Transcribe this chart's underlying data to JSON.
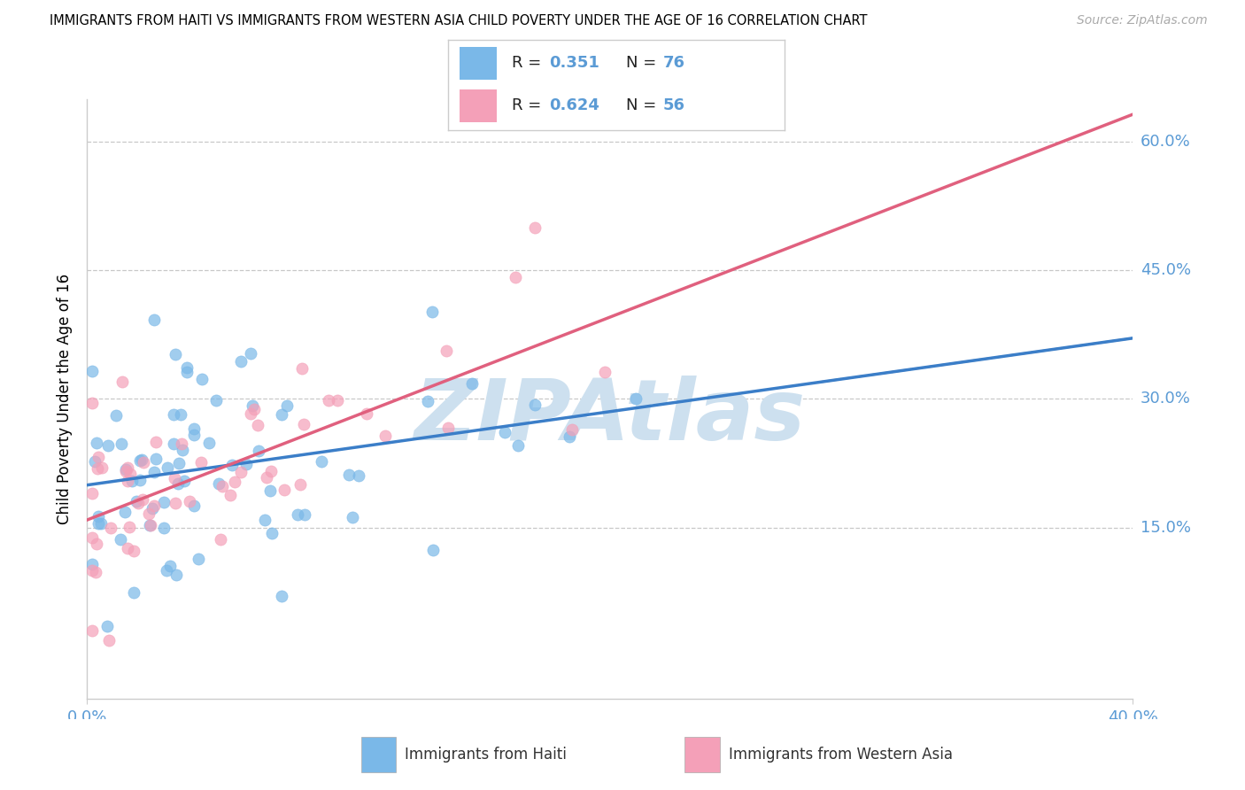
{
  "title": "IMMIGRANTS FROM HAITI VS IMMIGRANTS FROM WESTERN ASIA CHILD POVERTY UNDER THE AGE OF 16 CORRELATION CHART",
  "source": "Source: ZipAtlas.com",
  "ylabel": "Child Poverty Under the Age of 16",
  "xlim": [
    0.0,
    0.4
  ],
  "ylim": [
    -0.05,
    0.65
  ],
  "x_tick_left": "0.0%",
  "x_tick_right": "40.0%",
  "y_ticks": [
    0.0,
    0.15,
    0.3,
    0.45,
    0.6
  ],
  "y_tick_labels": [
    "",
    "15.0%",
    "30.0%",
    "45.0%",
    "60.0%"
  ],
  "haiti_R": 0.351,
  "haiti_N": 76,
  "western_asia_R": 0.624,
  "western_asia_N": 56,
  "haiti_color": "#7ab8e8",
  "western_asia_color": "#f4a0b8",
  "haiti_line_color": "#3b7ec8",
  "western_asia_line_color": "#e0607e",
  "grid_color": "#c8c8c8",
  "tick_color": "#5b9bd5",
  "watermark_text": "ZIPAtlas",
  "watermark_color": "#cde0ef",
  "legend_label_haiti": "Immigrants from Haiti",
  "legend_label_western_asia": "Immigrants from Western Asia",
  "legend_text_color": "#5b9bd5",
  "legend_label_color": "#222222"
}
